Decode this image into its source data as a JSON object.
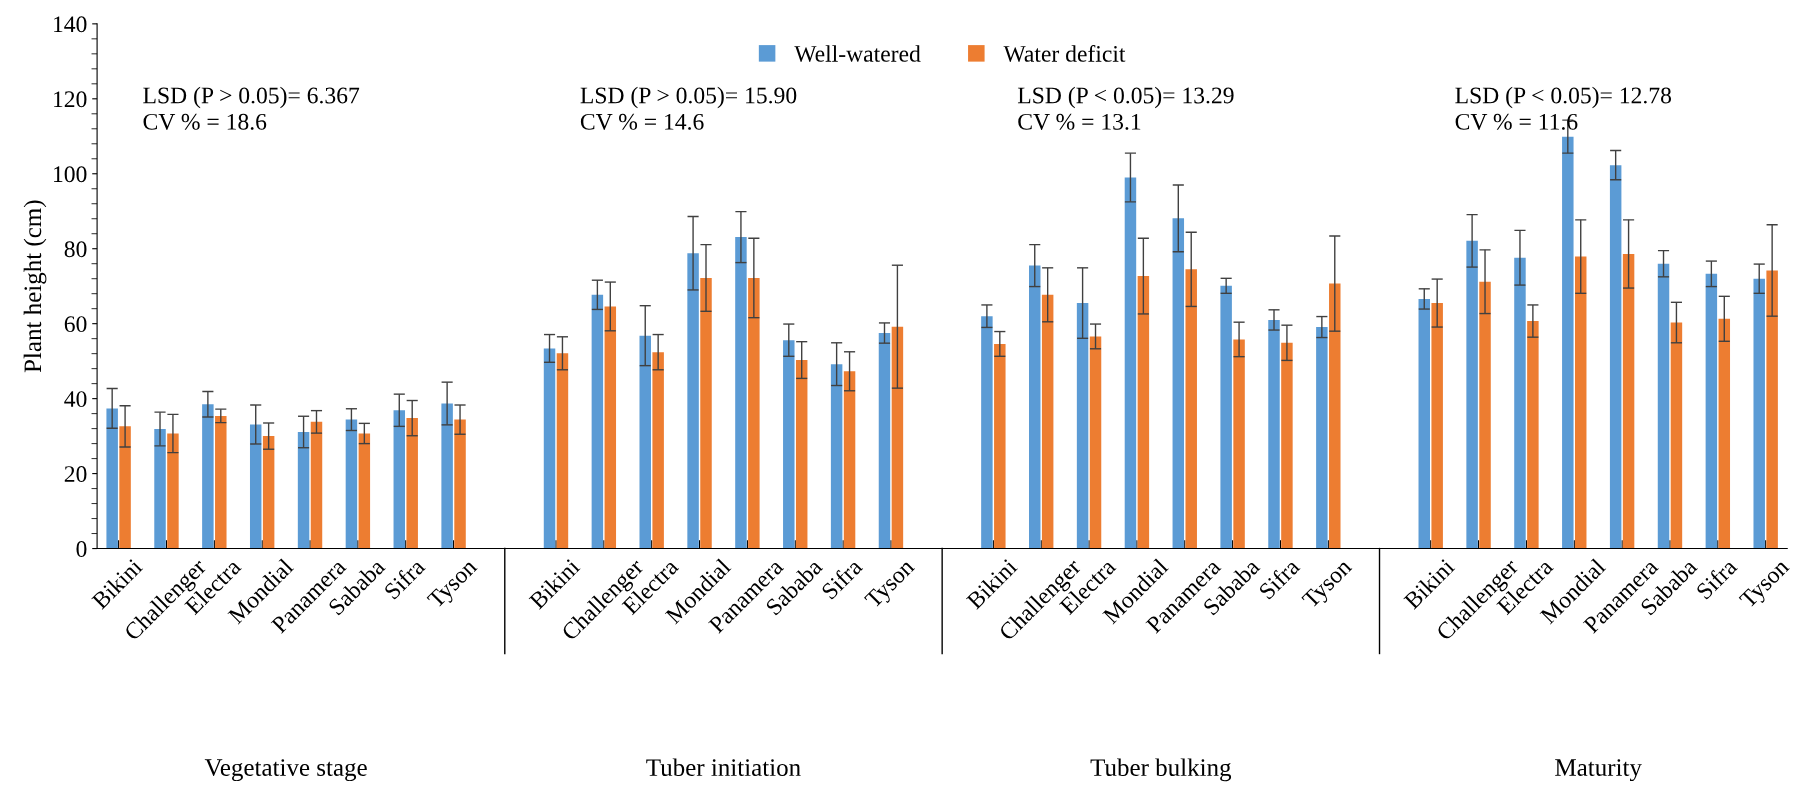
{
  "chart_data": {
    "type": "bar",
    "ylabel": "Plant height (cm)",
    "categories": [
      "Bikini",
      "Challenger",
      "Electra",
      "Mondial",
      "Panamera",
      "Sababa",
      "Sifra",
      "Tyson",
      "Bikini",
      "Challenger",
      "Electra",
      "Mondial",
      "Panamera",
      "Sababa",
      "Sifra",
      "Tyson",
      "Bikini",
      "Challenger",
      "Electra",
      "Mondial",
      "Panamera",
      "Sababa",
      "Sifra",
      "Tyson",
      "Bikini",
      "Challenger",
      "Electra",
      "Mondial",
      "Panamera",
      "Sababa",
      "Sifra",
      "Tyson"
    ],
    "series": [
      {
        "name": "Well-watered",
        "color": "#5b9bd5",
        "values": [
          37.4,
          31.9,
          38.5,
          33.1,
          31.1,
          34.4,
          36.9,
          38.7,
          53.4,
          67.7,
          56.8,
          78.8,
          83.1,
          55.6,
          49.2,
          57.5,
          62.0,
          75.5,
          65.5,
          99.0,
          88.1,
          70.1,
          61.0,
          59.1,
          66.6,
          82.1,
          77.6,
          109.9,
          102.3,
          76.0,
          73.3,
          72.0
        ],
        "errors": [
          5.3,
          4.5,
          3.4,
          5.2,
          4.2,
          2.9,
          4.3,
          5.7,
          3.7,
          3.9,
          8.0,
          9.8,
          6.8,
          4.3,
          5.7,
          2.7,
          3.0,
          5.6,
          9.4,
          6.5,
          8.9,
          2.0,
          2.7,
          2.8,
          2.7,
          7.0,
          7.3,
          4.4,
          3.9,
          3.5,
          3.4,
          3.9
        ]
      },
      {
        "name": "Water deficit",
        "color": "#ed7d31",
        "values": [
          32.6,
          30.7,
          35.4,
          30.0,
          33.8,
          30.7,
          34.8,
          34.4,
          52.1,
          64.6,
          52.4,
          72.2,
          72.2,
          50.3,
          47.3,
          59.2,
          54.6,
          67.7,
          56.6,
          72.7,
          74.5,
          55.8,
          54.9,
          70.7,
          65.5,
          71.2,
          60.7,
          77.9,
          78.6,
          60.3,
          61.3,
          74.2
        ],
        "errors": [
          5.5,
          5.1,
          1.8,
          3.5,
          3.0,
          2.7,
          4.7,
          3.9,
          4.4,
          6.5,
          4.7,
          8.9,
          10.6,
          4.9,
          5.2,
          16.4,
          3.3,
          7.2,
          3.3,
          10.1,
          9.9,
          4.6,
          4.7,
          12.7,
          6.4,
          8.5,
          4.3,
          9.8,
          9.1,
          5.4,
          6.0,
          12.2
        ]
      }
    ],
    "ylim": [
      0,
      140
    ],
    "yticks": [
      0,
      20,
      40,
      60,
      80,
      100,
      120,
      140
    ],
    "legend": "top",
    "annotations": [
      "LSD (P > 0.05)= 6.367\nCV % = 18.6",
      "LSD (P > 0.05)= 15.90\nCV % = 14.6",
      "LSD (P < 0.05)= 13.29\nCV % = 13.1",
      "LSD (P < 0.05)= 12.78\nCV % = 11.6",
      "Vegetative stage",
      "Tuber initiation",
      "Tuber bulking",
      "Maturity"
    ]
  }
}
